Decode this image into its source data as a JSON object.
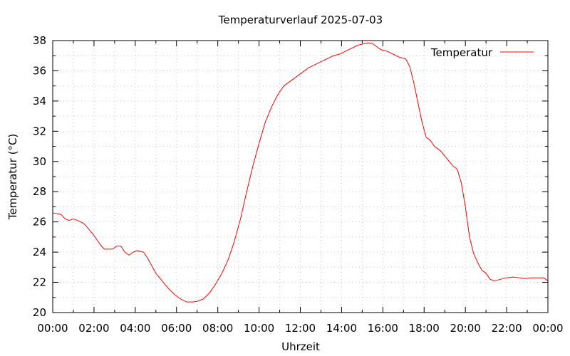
{
  "chart_data": {
    "type": "line",
    "title": "Temperaturverlauf 2025-07-03",
    "xlabel": "Uhrzeit",
    "ylabel": "Temperatur (°C)",
    "xlim": [
      0,
      24
    ],
    "ylim": [
      20,
      38
    ],
    "grid": true,
    "legend_position": "top-right",
    "x_ticks": [
      {
        "x": 0,
        "label": "00:00"
      },
      {
        "x": 2,
        "label": "02:00"
      },
      {
        "x": 4,
        "label": "04:00"
      },
      {
        "x": 6,
        "label": "06:00"
      },
      {
        "x": 8,
        "label": "08:00"
      },
      {
        "x": 10,
        "label": "10:00"
      },
      {
        "x": 12,
        "label": "12:00"
      },
      {
        "x": 14,
        "label": "14:00"
      },
      {
        "x": 16,
        "label": "16:00"
      },
      {
        "x": 18,
        "label": "18:00"
      },
      {
        "x": 20,
        "label": "20:00"
      },
      {
        "x": 22,
        "label": "22:00"
      },
      {
        "x": 24,
        "label": "00:00"
      }
    ],
    "y_ticks": [
      {
        "y": 20,
        "label": "20"
      },
      {
        "y": 22,
        "label": "22"
      },
      {
        "y": 24,
        "label": "24"
      },
      {
        "y": 26,
        "label": "26"
      },
      {
        "y": 28,
        "label": "28"
      },
      {
        "y": 30,
        "label": "30"
      },
      {
        "y": 32,
        "label": "32"
      },
      {
        "y": 34,
        "label": "34"
      },
      {
        "y": 36,
        "label": "36"
      },
      {
        "y": 38,
        "label": "38"
      }
    ],
    "series": [
      {
        "name": "Temperatur",
        "color": "#ff0000",
        "x": [
          0,
          0.4,
          0.6,
          0.8,
          1.0,
          1.2,
          1.5,
          1.7,
          2.0,
          2.3,
          2.5,
          2.7,
          2.9,
          3.1,
          3.3,
          3.5,
          3.7,
          3.9,
          4.1,
          4.4,
          4.6,
          4.8,
          5.0,
          5.3,
          5.6,
          5.9,
          6.2,
          6.5,
          6.8,
          7.0,
          7.3,
          7.6,
          7.9,
          8.2,
          8.5,
          8.8,
          9.1,
          9.4,
          9.7,
          10.0,
          10.3,
          10.6,
          10.9,
          11.2,
          11.5,
          11.8,
          12.1,
          12.4,
          12.7,
          13.0,
          13.3,
          13.6,
          13.9,
          14.2,
          14.5,
          14.8,
          15.1,
          15.3,
          15.5,
          15.7,
          15.9,
          16.2,
          16.5,
          16.8,
          17.1,
          17.3,
          17.5,
          17.7,
          17.9,
          18.1,
          18.3,
          18.5,
          18.8,
          19.1,
          19.4,
          19.6,
          19.8,
          20.0,
          20.2,
          20.4,
          20.6,
          20.8,
          21.0,
          21.2,
          21.4,
          21.7,
          22.0,
          22.3,
          22.6,
          22.9,
          23.2,
          23.5,
          23.8,
          24.0
        ],
        "values": [
          26.6,
          26.5,
          26.2,
          26.1,
          26.2,
          26.1,
          25.9,
          25.6,
          25.1,
          24.5,
          24.2,
          24.2,
          24.2,
          24.4,
          24.4,
          24.0,
          23.8,
          24.0,
          24.1,
          24.0,
          23.6,
          23.1,
          22.6,
          22.1,
          21.6,
          21.2,
          20.9,
          20.7,
          20.7,
          20.75,
          20.9,
          21.3,
          21.9,
          22.6,
          23.5,
          24.7,
          26.2,
          28.0,
          29.7,
          31.2,
          32.6,
          33.6,
          34.4,
          35.0,
          35.3,
          35.6,
          35.9,
          36.2,
          36.4,
          36.6,
          36.8,
          37.0,
          37.1,
          37.3,
          37.5,
          37.7,
          37.8,
          37.85,
          37.8,
          37.6,
          37.4,
          37.3,
          37.1,
          36.9,
          36.8,
          36.3,
          35.2,
          33.9,
          32.6,
          31.6,
          31.4,
          31.0,
          30.7,
          30.2,
          29.7,
          29.5,
          28.6,
          27.0,
          25.0,
          23.9,
          23.3,
          22.8,
          22.6,
          22.2,
          22.1,
          22.2,
          22.3,
          22.35,
          22.3,
          22.25,
          22.3,
          22.3,
          22.3,
          22.1
        ]
      }
    ]
  }
}
